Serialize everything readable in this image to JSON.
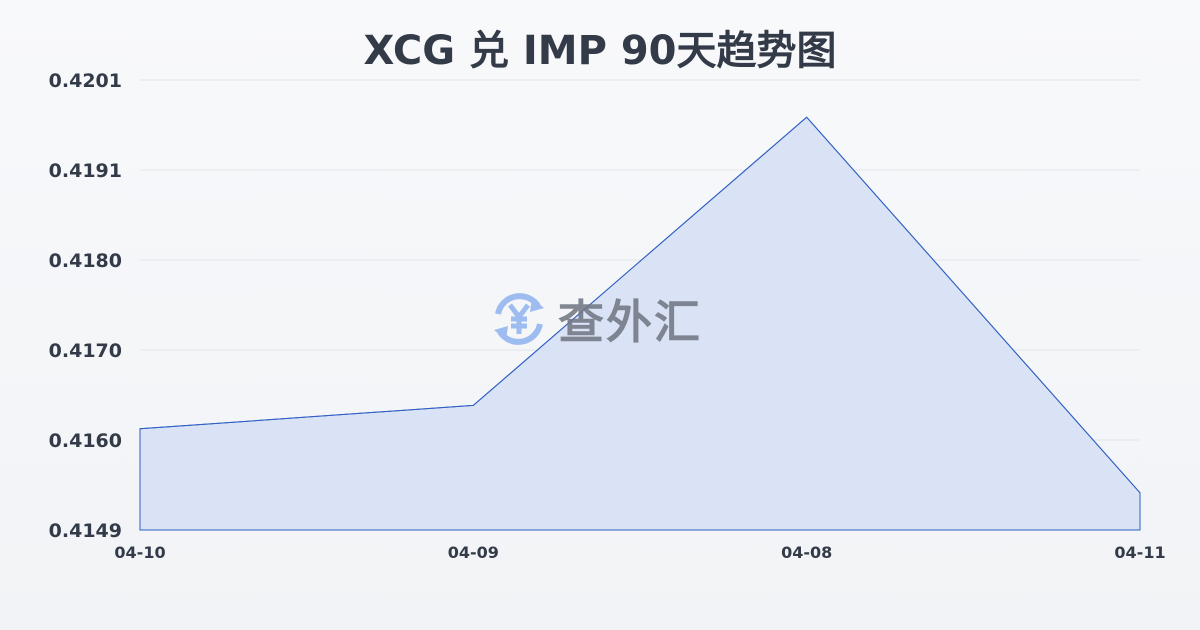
{
  "chart_data": {
    "type": "area",
    "title": "XCG 兑 IMP 90天趋势图",
    "categories": [
      "04-10",
      "04-09",
      "04-08",
      "04-11"
    ],
    "values": [
      0.41607,
      0.41634,
      0.41967,
      0.41533
    ],
    "y_ticks": [
      "0.4201",
      "0.4191",
      "0.4180",
      "0.4170",
      "0.4160",
      "0.4149"
    ],
    "ylim": [
      0.4149,
      0.4201
    ],
    "grid": true,
    "colors": {
      "line": "#2f5fc4",
      "fill": "#d5dff5"
    }
  },
  "watermark": {
    "text": "查外汇",
    "icon": "yen-exchange-icon"
  }
}
